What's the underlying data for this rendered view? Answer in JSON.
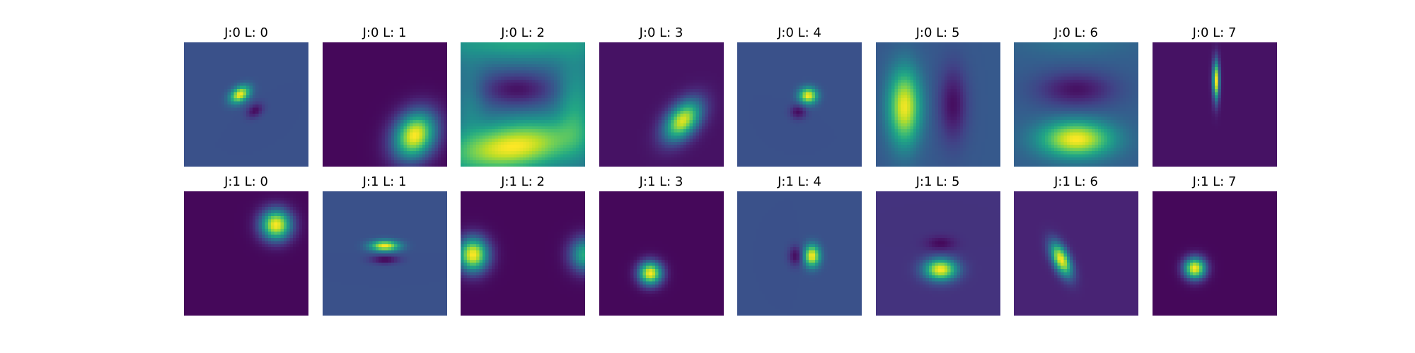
{
  "chart_data": {
    "type": "heatmap",
    "colormap": "viridis",
    "axes_visible": false,
    "grid": "2 rows x 8 columns",
    "panels": [
      {
        "title": "J:0 L: 0",
        "background": 0.25,
        "blobs": [
          {
            "x": 0.45,
            "y": 0.42,
            "sx": 0.06,
            "sy": 0.04,
            "angle": -35,
            "amp": 0.75
          },
          {
            "x": 0.57,
            "y": 0.55,
            "sx": 0.05,
            "sy": 0.035,
            "angle": -35,
            "amp": -0.22
          }
        ]
      },
      {
        "title": "J:0 L: 1",
        "background": 0.02,
        "blobs": [
          {
            "x": 0.74,
            "y": 0.75,
            "sx": 0.11,
            "sy": 0.14,
            "angle": 30,
            "amp": 0.98
          }
        ]
      },
      {
        "title": "J:0 L: 2",
        "background": 0.35,
        "blobs": [
          {
            "x": 0.42,
            "y": 0.84,
            "sx": 0.35,
            "sy": 0.13,
            "angle": -8,
            "amp": 0.65
          },
          {
            "x": 0.5,
            "y": 0.0,
            "sx": 0.5,
            "sy": 0.1,
            "amp": 0.25
          },
          {
            "x": 0.45,
            "y": 0.38,
            "sx": 0.22,
            "sy": 0.1,
            "amp": -0.3
          },
          {
            "x": 0.92,
            "y": 0.5,
            "sx": 0.1,
            "sy": 0.25,
            "amp": 0.22
          },
          {
            "x": 0.08,
            "y": 0.45,
            "sx": 0.08,
            "sy": 0.2,
            "amp": 0.12
          }
        ]
      },
      {
        "title": "J:0 L: 3",
        "background": 0.05,
        "blobs": [
          {
            "x": 0.67,
            "y": 0.63,
            "sx": 0.08,
            "sy": 0.13,
            "angle": 40,
            "amp": 0.9
          }
        ]
      },
      {
        "title": "J:0 L: 4",
        "background": 0.25,
        "blobs": [
          {
            "x": 0.57,
            "y": 0.43,
            "sx": 0.05,
            "sy": 0.045,
            "amp": 0.75
          },
          {
            "x": 0.49,
            "y": 0.56,
            "sx": 0.045,
            "sy": 0.04,
            "amp": -0.22
          }
        ]
      },
      {
        "title": "J:0 L: 5",
        "background": 0.28,
        "blobs": [
          {
            "x": 0.23,
            "y": 0.52,
            "sx": 0.09,
            "sy": 0.21,
            "amp": 0.7
          },
          {
            "x": 0.62,
            "y": 0.5,
            "sx": 0.08,
            "sy": 0.21,
            "amp": -0.24
          }
        ]
      },
      {
        "title": "J:0 L: 6",
        "background": 0.3,
        "blobs": [
          {
            "x": 0.5,
            "y": 0.78,
            "sx": 0.2,
            "sy": 0.1,
            "amp": 0.7
          },
          {
            "x": 0.5,
            "y": 0.38,
            "sx": 0.22,
            "sy": 0.1,
            "amp": -0.25
          },
          {
            "x": 0.5,
            "y": 0.0,
            "sx": 0.3,
            "sy": 0.08,
            "amp": 0.08
          }
        ]
      },
      {
        "title": "J:0 L: 7",
        "background": 0.05,
        "blobs": [
          {
            "x": 0.51,
            "y": 0.31,
            "sx": 0.018,
            "sy": 0.11,
            "amp": 0.95
          },
          {
            "x": 0.49,
            "y": 0.42,
            "sx": 0.015,
            "sy": 0.05,
            "amp": -0.04
          }
        ]
      },
      {
        "title": "J:1 L: 0",
        "background": 0.02,
        "blobs": [
          {
            "x": 0.74,
            "y": 0.27,
            "sx": 0.085,
            "sy": 0.085,
            "amp": 0.98
          }
        ]
      },
      {
        "title": "J:1 L: 1",
        "background": 0.25,
        "blobs": [
          {
            "x": 0.5,
            "y": 0.44,
            "sx": 0.08,
            "sy": 0.03,
            "amp": 0.75
          },
          {
            "x": 0.5,
            "y": 0.55,
            "sx": 0.08,
            "sy": 0.025,
            "amp": -0.24
          }
        ]
      },
      {
        "title": "J:1 L: 2",
        "background": 0.02,
        "blobs": [
          {
            "x": 0.1,
            "y": 0.51,
            "sx": 0.085,
            "sy": 0.095,
            "amp": 0.98
          },
          {
            "x": 1.0,
            "y": 0.51,
            "sx": 0.085,
            "sy": 0.095,
            "amp": 0.6
          }
        ]
      },
      {
        "title": "J:1 L: 3",
        "background": 0.02,
        "blobs": [
          {
            "x": 0.41,
            "y": 0.66,
            "sx": 0.065,
            "sy": 0.065,
            "amp": 0.98
          }
        ]
      },
      {
        "title": "J:1 L: 4",
        "background": 0.25,
        "blobs": [
          {
            "x": 0.6,
            "y": 0.52,
            "sx": 0.045,
            "sy": 0.06,
            "amp": 0.75
          },
          {
            "x": 0.47,
            "y": 0.52,
            "sx": 0.04,
            "sy": 0.055,
            "amp": -0.22
          }
        ]
      },
      {
        "title": "J:1 L: 5",
        "background": 0.15,
        "blobs": [
          {
            "x": 0.52,
            "y": 0.63,
            "sx": 0.09,
            "sy": 0.06,
            "amp": 0.85
          },
          {
            "x": 0.52,
            "y": 0.42,
            "sx": 0.08,
            "sy": 0.04,
            "amp": -0.13
          }
        ]
      },
      {
        "title": "J:1 L: 6",
        "background": 0.1,
        "blobs": [
          {
            "x": 0.38,
            "y": 0.55,
            "sx": 0.045,
            "sy": 0.1,
            "angle": -25,
            "amp": 0.9
          }
        ]
      },
      {
        "title": "J:1 L: 7",
        "background": 0.02,
        "blobs": [
          {
            "x": 0.34,
            "y": 0.62,
            "sx": 0.06,
            "sy": 0.06,
            "amp": 0.98
          }
        ]
      }
    ]
  }
}
